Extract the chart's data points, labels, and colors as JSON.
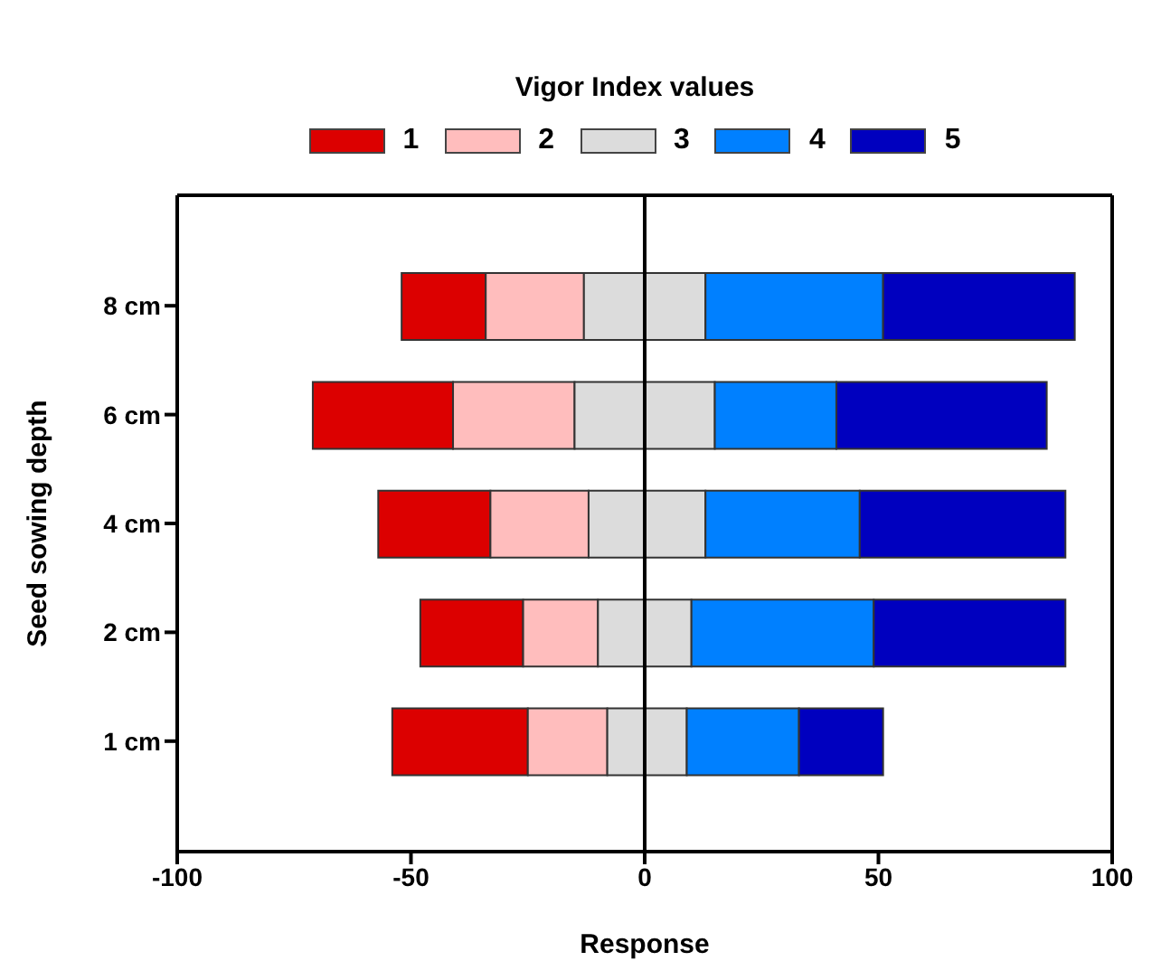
{
  "chart_data": {
    "type": "bar",
    "orientation": "horizontal",
    "legend_title": "Vigor Index values",
    "legend": "top",
    "xlabel": "Response",
    "ylabel": "Seed sowing depth",
    "categories": [
      "8 cm",
      "6 cm",
      "4 cm",
      "2 cm",
      "1 cm"
    ],
    "series": [
      {
        "name": "1",
        "color": "#dc0000",
        "base": [
          -52,
          -71,
          -57,
          -48,
          -54
        ],
        "values": [
          18,
          30,
          24,
          22,
          29
        ]
      },
      {
        "name": "2",
        "color": "#ffbdbd",
        "base": [
          -34,
          -41,
          -33,
          -26,
          -25
        ],
        "values": [
          21,
          26,
          21,
          16,
          17
        ]
      },
      {
        "name": "3",
        "color": "#dcdcdc",
        "base": [
          -13,
          -15,
          -12,
          -10,
          -8
        ],
        "values": [
          26,
          30,
          25,
          20,
          17
        ]
      },
      {
        "name": "4",
        "color": "#0080ff",
        "base": [
          13,
          15,
          13,
          10,
          9
        ],
        "values": [
          38,
          26,
          33,
          39,
          24
        ]
      },
      {
        "name": "5",
        "color": "#0000bf",
        "base": [
          51,
          41,
          46,
          49,
          33
        ],
        "values": [
          41,
          45,
          44,
          41,
          18
        ]
      }
    ],
    "xlim": [
      -100,
      100
    ],
    "xticks": [
      -100,
      -50,
      0,
      50,
      100
    ],
    "ref_lines": [
      {
        "axis": "x",
        "value": 0
      }
    ]
  }
}
